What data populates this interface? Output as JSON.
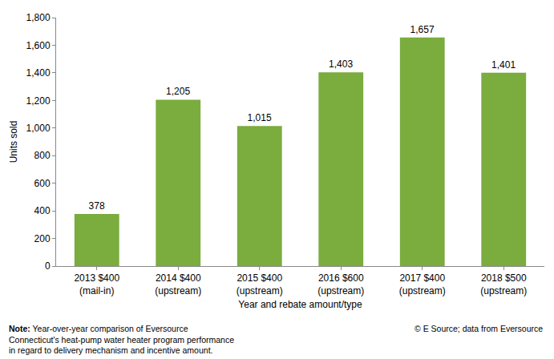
{
  "chart_data": {
    "type": "bar",
    "x_label": "Year and rebate amount/type",
    "y_label": "Units sold",
    "categories": [
      "2013 $400\n(mail-in)",
      "2014 $400\n(upstream)",
      "2015 $400\n(upstream)",
      "2016 $600\n(upstream)",
      "2017 $400\n(upstream)",
      "2018 $500\n(upstream)"
    ],
    "values": [
      378,
      1205,
      1015,
      1403,
      1657,
      1401
    ],
    "value_labels": [
      "378",
      "1,205",
      "1,015",
      "1,403",
      "1,657",
      "1,401"
    ],
    "data_labels": true,
    "color": "#7aac3e",
    "ylim": [
      0,
      1800
    ],
    "yticks": [
      0,
      200,
      400,
      600,
      800,
      {
        "value": 1000,
        "label": "1,000"
      },
      {
        "value": 1200,
        "label": "1,200"
      },
      {
        "value": 1400,
        "label": "1,400"
      },
      {
        "value": 1600,
        "label": "1,600"
      },
      {
        "value": 1800,
        "label": "1,800"
      }
    ],
    "grid": false,
    "note_label": "Note:",
    "note": "Year-over-year comparison of Eversource\nConnecticut's heat-pump water heater program performance\nin regard to delivery mechanism and incentive amount.",
    "source": "© E Source; data from Eversource"
  }
}
